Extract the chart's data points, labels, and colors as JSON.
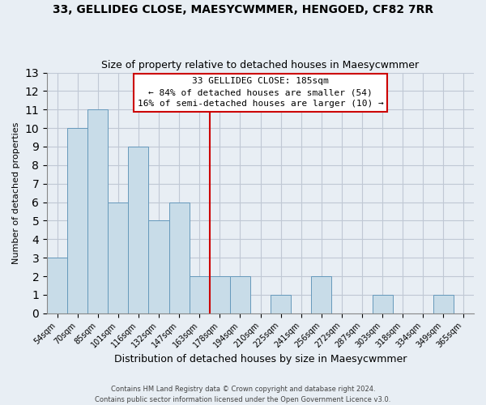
{
  "title": "33, GELLIDEG CLOSE, MAESYCWMMER, HENGOED, CF82 7RR",
  "subtitle": "Size of property relative to detached houses in Maesycwmmer",
  "xlabel": "Distribution of detached houses by size in Maesycwmmer",
  "ylabel": "Number of detached properties",
  "bin_labels": [
    "54sqm",
    "70sqm",
    "85sqm",
    "101sqm",
    "116sqm",
    "132sqm",
    "147sqm",
    "163sqm",
    "178sqm",
    "194sqm",
    "210sqm",
    "225sqm",
    "241sqm",
    "256sqm",
    "272sqm",
    "287sqm",
    "303sqm",
    "318sqm",
    "334sqm",
    "349sqm",
    "365sqm"
  ],
  "bar_heights": [
    3,
    10,
    11,
    6,
    9,
    5,
    6,
    2,
    2,
    2,
    0,
    1,
    0,
    2,
    0,
    0,
    1,
    0,
    0,
    1,
    0
  ],
  "bar_color": "#c8dce8",
  "bar_edge_color": "#6699bb",
  "vline_x": 8.0,
  "vline_color": "#cc0000",
  "ylim": [
    0,
    13
  ],
  "yticks": [
    0,
    1,
    2,
    3,
    4,
    5,
    6,
    7,
    8,
    9,
    10,
    11,
    12,
    13
  ],
  "annotation_title": "33 GELLIDEG CLOSE: 185sqm",
  "annotation_line1": "← 84% of detached houses are smaller (54)",
  "annotation_line2": "16% of semi-detached houses are larger (10) →",
  "annotation_box_color": "#ffffff",
  "annotation_box_edge": "#cc0000",
  "footer1": "Contains HM Land Registry data © Crown copyright and database right 2024.",
  "footer2": "Contains public sector information licensed under the Open Government Licence v3.0.",
  "grid_color": "#c0c8d4",
  "background_color": "#e8eef4",
  "title_fontsize": 10,
  "subtitle_fontsize": 9,
  "xlabel_fontsize": 9,
  "ylabel_fontsize": 8,
  "tick_fontsize": 7,
  "footer_fontsize": 6,
  "annot_fontsize": 8
}
